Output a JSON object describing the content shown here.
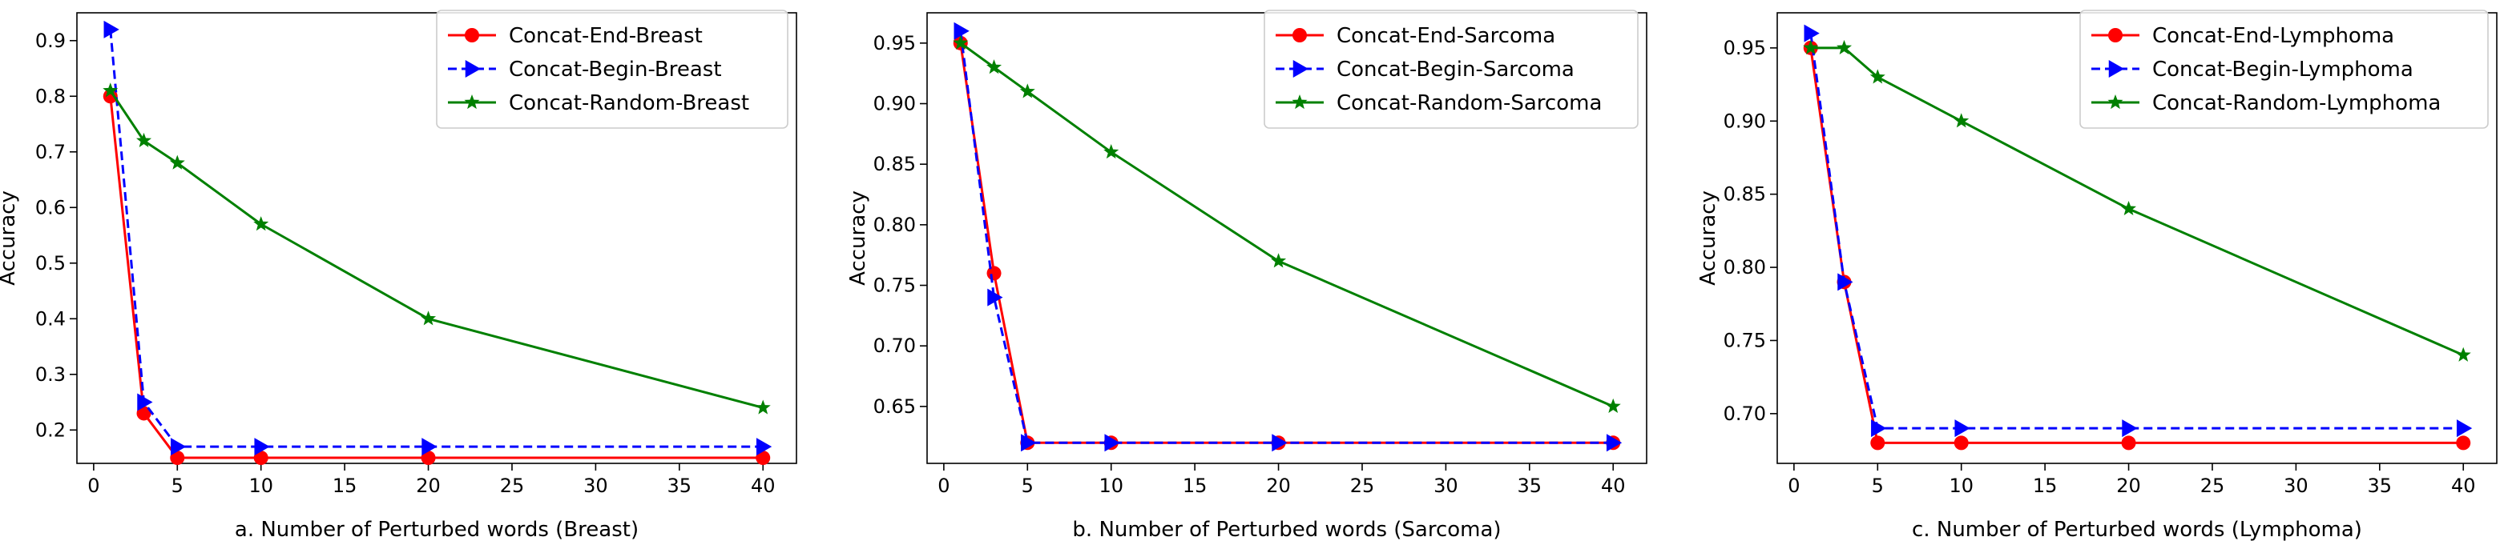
{
  "chart_data": [
    {
      "type": "line",
      "title": "",
      "xlabel": "a. Number of Perturbed words (Breast)",
      "ylabel": "Accuracy",
      "xlim": [
        -1,
        42
      ],
      "ylim": [
        0.14,
        0.95
      ],
      "xticks": [
        0,
        5,
        10,
        15,
        20,
        25,
        30,
        35,
        40
      ],
      "yticks": [
        0.2,
        0.3,
        0.4,
        0.5,
        0.6,
        0.7,
        0.8,
        0.9
      ],
      "ytick_labels": [
        "0.2",
        "0.3",
        "0.4",
        "0.5",
        "0.6",
        "0.7",
        "0.8",
        "0.9"
      ],
      "grid": false,
      "legend_position": "top-right",
      "x": [
        1,
        3,
        5,
        10,
        20,
        40
      ],
      "series": [
        {
          "name": "Concat-End-Breast",
          "color": "#ff0000",
          "style": "solid",
          "marker": "circle",
          "values": [
            0.8,
            0.23,
            0.15,
            0.15,
            0.15,
            0.15
          ]
        },
        {
          "name": "Concat-Begin-Breast",
          "color": "#0000ff",
          "style": "dashed",
          "marker": "triangle-right",
          "values": [
            0.92,
            0.25,
            0.17,
            0.17,
            0.17,
            0.17
          ]
        },
        {
          "name": "Concat-Random-Breast",
          "color": "#008000",
          "style": "solid",
          "marker": "star",
          "values": [
            0.81,
            0.72,
            0.68,
            0.57,
            0.4,
            0.24
          ]
        }
      ]
    },
    {
      "type": "line",
      "title": "",
      "xlabel": "b. Number of Perturbed words (Sarcoma)",
      "ylabel": "Accuracy",
      "xlim": [
        -1,
        42
      ],
      "ylim": [
        0.603,
        0.975
      ],
      "xticks": [
        0,
        5,
        10,
        15,
        20,
        25,
        30,
        35,
        40
      ],
      "yticks": [
        0.65,
        0.7,
        0.75,
        0.8,
        0.85,
        0.9,
        0.95
      ],
      "ytick_labels": [
        "0.65",
        "0.70",
        "0.75",
        "0.80",
        "0.85",
        "0.90",
        "0.95"
      ],
      "grid": false,
      "legend_position": "top-right",
      "x": [
        1,
        3,
        5,
        10,
        20,
        40
      ],
      "series": [
        {
          "name": "Concat-End-Sarcoma",
          "color": "#ff0000",
          "style": "solid",
          "marker": "circle",
          "values": [
            0.95,
            0.76,
            0.62,
            0.62,
            0.62,
            0.62
          ]
        },
        {
          "name": "Concat-Begin-Sarcoma",
          "color": "#0000ff",
          "style": "dashed",
          "marker": "triangle-right",
          "values": [
            0.96,
            0.74,
            0.62,
            0.62,
            0.62,
            0.62
          ]
        },
        {
          "name": "Concat-Random-Sarcoma",
          "color": "#008000",
          "style": "solid",
          "marker": "star",
          "values": [
            0.95,
            0.93,
            0.91,
            0.86,
            0.77,
            0.65
          ]
        }
      ]
    },
    {
      "type": "line",
      "title": "",
      "xlabel": "c. Number of Perturbed words (Lymphoma)",
      "ylabel": "Accuracy",
      "xlim": [
        -1,
        42
      ],
      "ylim": [
        0.666,
        0.974
      ],
      "xticks": [
        0,
        5,
        10,
        15,
        20,
        25,
        30,
        35,
        40
      ],
      "yticks": [
        0.7,
        0.75,
        0.8,
        0.85,
        0.9,
        0.95
      ],
      "ytick_labels": [
        "0.70",
        "0.75",
        "0.80",
        "0.85",
        "0.90",
        "0.95"
      ],
      "grid": false,
      "legend_position": "top-right",
      "x": [
        1,
        3,
        5,
        10,
        20,
        40
      ],
      "series": [
        {
          "name": "Concat-End-Lymphoma",
          "color": "#ff0000",
          "style": "solid",
          "marker": "circle",
          "values": [
            0.95,
            0.79,
            0.68,
            0.68,
            0.68,
            0.68
          ]
        },
        {
          "name": "Concat-Begin-Lymphoma",
          "color": "#0000ff",
          "style": "dashed",
          "marker": "triangle-right",
          "values": [
            0.96,
            0.79,
            0.69,
            0.69,
            0.69,
            0.69
          ]
        },
        {
          "name": "Concat-Random-Lymphoma",
          "color": "#008000",
          "style": "solid",
          "marker": "star",
          "values": [
            0.95,
            0.95,
            0.93,
            0.9,
            0.84,
            0.74
          ]
        }
      ]
    }
  ]
}
